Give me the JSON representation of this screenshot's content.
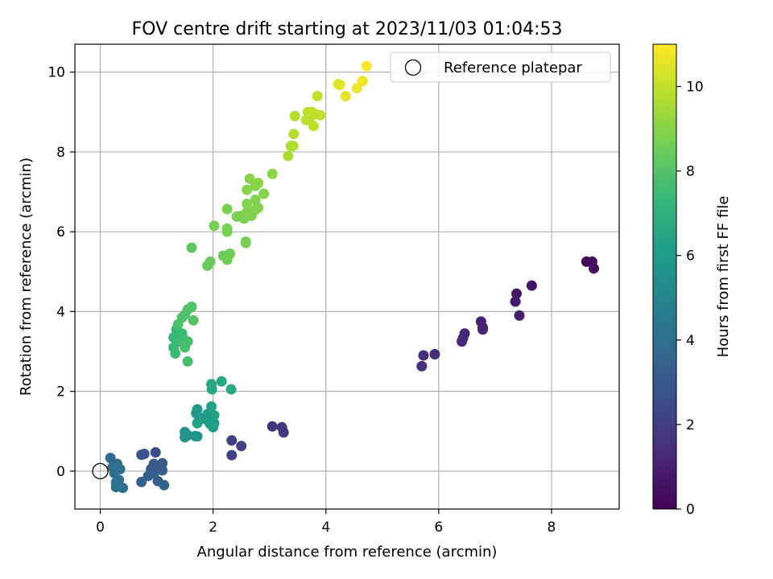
{
  "chart_data": {
    "type": "scatter",
    "title": "FOV centre drift starting at 2023/11/03 01:04:53",
    "xlabel": "Angular distance from reference (arcmin)",
    "ylabel": "Rotation from reference (arcmin)",
    "xlim": [
      -0.45,
      9.2
    ],
    "ylim": [
      -0.95,
      10.7
    ],
    "xticks": [
      0,
      2,
      4,
      6,
      8
    ],
    "yticks": [
      0,
      2,
      4,
      6,
      8,
      10
    ],
    "grid": true,
    "legend": {
      "position": "top-right",
      "entries": [
        "Reference platepar"
      ]
    },
    "colorbar": {
      "label": "Hours from first FF file",
      "colormap": "viridis",
      "range": [
        0,
        11
      ],
      "ticks": [
        0,
        2,
        4,
        6,
        8,
        10
      ]
    },
    "reference_point": {
      "x": 0,
      "y": 0
    },
    "points": [
      {
        "x": 8.62,
        "y": 5.25,
        "h": 0.2
      },
      {
        "x": 8.72,
        "y": 5.25,
        "h": 0.3
      },
      {
        "x": 8.75,
        "y": 5.08,
        "h": 0.4
      },
      {
        "x": 7.65,
        "y": 4.65,
        "h": 0.6
      },
      {
        "x": 7.38,
        "y": 4.45,
        "h": 0.7
      },
      {
        "x": 7.36,
        "y": 4.25,
        "h": 0.8
      },
      {
        "x": 7.43,
        "y": 3.9,
        "h": 0.9
      },
      {
        "x": 6.75,
        "y": 3.75,
        "h": 1.0
      },
      {
        "x": 6.78,
        "y": 3.6,
        "h": 1.05
      },
      {
        "x": 6.78,
        "y": 3.55,
        "h": 1.1
      },
      {
        "x": 6.46,
        "y": 3.45,
        "h": 1.2
      },
      {
        "x": 6.43,
        "y": 3.33,
        "h": 1.25
      },
      {
        "x": 6.41,
        "y": 3.25,
        "h": 1.3
      },
      {
        "x": 5.93,
        "y": 2.93,
        "h": 1.4
      },
      {
        "x": 5.73,
        "y": 2.9,
        "h": 1.45
      },
      {
        "x": 5.7,
        "y": 2.63,
        "h": 1.5
      },
      {
        "x": 3.05,
        "y": 1.12,
        "h": 1.7
      },
      {
        "x": 3.22,
        "y": 1.1,
        "h": 1.75
      },
      {
        "x": 3.25,
        "y": 0.97,
        "h": 1.8
      },
      {
        "x": 2.33,
        "y": 0.77,
        "h": 2.0
      },
      {
        "x": 2.5,
        "y": 0.63,
        "h": 2.1
      },
      {
        "x": 2.33,
        "y": 0.4,
        "h": 2.2
      },
      {
        "x": 0.98,
        "y": 0.47,
        "h": 2.7
      },
      {
        "x": 0.78,
        "y": 0.43,
        "h": 2.8
      },
      {
        "x": 0.73,
        "y": 0.41,
        "h": 2.85
      },
      {
        "x": 1.1,
        "y": 0.2,
        "h": 3.0
      },
      {
        "x": 0.95,
        "y": 0.18,
        "h": 3.05
      },
      {
        "x": 1.05,
        "y": 0.1,
        "h": 3.1
      },
      {
        "x": 0.9,
        "y": 0.05,
        "h": 3.15
      },
      {
        "x": 1.1,
        "y": 0.02,
        "h": 3.2
      },
      {
        "x": 0.95,
        "y": -0.05,
        "h": 3.25
      },
      {
        "x": 0.85,
        "y": -0.12,
        "h": 3.3
      },
      {
        "x": 1.02,
        "y": -0.25,
        "h": 3.35
      },
      {
        "x": 0.73,
        "y": -0.27,
        "h": 3.4
      },
      {
        "x": 1.13,
        "y": -0.35,
        "h": 3.45
      },
      {
        "x": 0.18,
        "y": 0.33,
        "h": 3.8
      },
      {
        "x": 0.3,
        "y": 0.18,
        "h": 3.9
      },
      {
        "x": 0.22,
        "y": 0.1,
        "h": 3.95
      },
      {
        "x": 0.35,
        "y": 0.05,
        "h": 4.0
      },
      {
        "x": 0.25,
        "y": -0.05,
        "h": 4.05
      },
      {
        "x": 0.33,
        "y": -0.22,
        "h": 4.1
      },
      {
        "x": 0.28,
        "y": -0.28,
        "h": 4.15
      },
      {
        "x": 0.28,
        "y": -0.4,
        "h": 4.2
      },
      {
        "x": 0.4,
        "y": -0.42,
        "h": 4.25
      },
      {
        "x": 1.55,
        "y": 0.9,
        "h": 5.5
      },
      {
        "x": 1.5,
        "y": 0.85,
        "h": 5.55
      },
      {
        "x": 1.68,
        "y": 0.88,
        "h": 5.6
      },
      {
        "x": 1.5,
        "y": 0.98,
        "h": 5.65
      },
      {
        "x": 1.72,
        "y": 0.87,
        "h": 5.7
      },
      {
        "x": 1.72,
        "y": 1.55,
        "h": 5.8
      },
      {
        "x": 1.7,
        "y": 1.45,
        "h": 5.85
      },
      {
        "x": 1.75,
        "y": 1.35,
        "h": 5.9
      },
      {
        "x": 1.9,
        "y": 1.43,
        "h": 5.95
      },
      {
        "x": 1.83,
        "y": 1.32,
        "h": 6.0
      },
      {
        "x": 1.92,
        "y": 1.25,
        "h": 6.05
      },
      {
        "x": 1.95,
        "y": 1.18,
        "h": 6.1
      },
      {
        "x": 2.02,
        "y": 1.2,
        "h": 6.15
      },
      {
        "x": 2.0,
        "y": 1.1,
        "h": 6.2
      },
      {
        "x": 2.02,
        "y": 1.4,
        "h": 6.25
      },
      {
        "x": 1.97,
        "y": 1.62,
        "h": 6.3
      },
      {
        "x": 1.72,
        "y": 1.2,
        "h": 6.35
      },
      {
        "x": 1.97,
        "y": 2.18,
        "h": 6.5
      },
      {
        "x": 2.15,
        "y": 2.25,
        "h": 6.55
      },
      {
        "x": 2.32,
        "y": 2.05,
        "h": 6.6
      },
      {
        "x": 1.98,
        "y": 2.05,
        "h": 6.65
      },
      {
        "x": 1.3,
        "y": 3.35,
        "h": 7.3
      },
      {
        "x": 1.35,
        "y": 3.55,
        "h": 7.35
      },
      {
        "x": 1.45,
        "y": 3.45,
        "h": 7.4
      },
      {
        "x": 1.3,
        "y": 3.1,
        "h": 7.45
      },
      {
        "x": 1.33,
        "y": 2.95,
        "h": 7.5
      },
      {
        "x": 1.48,
        "y": 3.3,
        "h": 7.55
      },
      {
        "x": 1.42,
        "y": 3.25,
        "h": 7.6
      },
      {
        "x": 1.55,
        "y": 3.25,
        "h": 7.65
      },
      {
        "x": 1.5,
        "y": 3.1,
        "h": 7.7
      },
      {
        "x": 1.55,
        "y": 2.75,
        "h": 7.75
      },
      {
        "x": 1.38,
        "y": 3.68,
        "h": 7.8
      },
      {
        "x": 1.45,
        "y": 3.85,
        "h": 7.85
      },
      {
        "x": 1.5,
        "y": 3.92,
        "h": 7.9
      },
      {
        "x": 1.55,
        "y": 4.05,
        "h": 7.95
      },
      {
        "x": 1.62,
        "y": 4.12,
        "h": 8.0
      },
      {
        "x": 1.65,
        "y": 3.78,
        "h": 8.05
      },
      {
        "x": 1.62,
        "y": 5.6,
        "h": 8.3
      },
      {
        "x": 1.9,
        "y": 5.15,
        "h": 8.4
      },
      {
        "x": 1.95,
        "y": 5.25,
        "h": 8.45
      },
      {
        "x": 2.18,
        "y": 5.4,
        "h": 8.5
      },
      {
        "x": 2.3,
        "y": 5.45,
        "h": 8.55
      },
      {
        "x": 2.25,
        "y": 5.3,
        "h": 8.6
      },
      {
        "x": 2.58,
        "y": 5.75,
        "h": 8.65
      },
      {
        "x": 2.58,
        "y": 5.72,
        "h": 8.68
      },
      {
        "x": 2.02,
        "y": 6.15,
        "h": 8.7
      },
      {
        "x": 2.25,
        "y": 6.08,
        "h": 8.72
      },
      {
        "x": 2.25,
        "y": 6.0,
        "h": 8.74
      },
      {
        "x": 2.25,
        "y": 6.57,
        "h": 8.76
      },
      {
        "x": 2.42,
        "y": 6.38,
        "h": 8.78
      },
      {
        "x": 2.5,
        "y": 6.4,
        "h": 8.8
      },
      {
        "x": 2.55,
        "y": 6.33,
        "h": 8.82
      },
      {
        "x": 2.6,
        "y": 6.5,
        "h": 8.84
      },
      {
        "x": 2.68,
        "y": 6.4,
        "h": 8.86
      },
      {
        "x": 2.75,
        "y": 6.55,
        "h": 8.88
      },
      {
        "x": 2.6,
        "y": 6.7,
        "h": 8.9
      },
      {
        "x": 2.8,
        "y": 6.6,
        "h": 8.92
      },
      {
        "x": 2.75,
        "y": 6.8,
        "h": 8.94
      },
      {
        "x": 2.9,
        "y": 6.95,
        "h": 8.96
      },
      {
        "x": 2.6,
        "y": 7.05,
        "h": 8.98
      },
      {
        "x": 2.75,
        "y": 7.15,
        "h": 9.0
      },
      {
        "x": 2.65,
        "y": 7.33,
        "h": 9.02
      },
      {
        "x": 2.8,
        "y": 7.22,
        "h": 9.04
      },
      {
        "x": 3.05,
        "y": 7.45,
        "h": 9.1
      },
      {
        "x": 3.33,
        "y": 7.9,
        "h": 9.6
      },
      {
        "x": 3.38,
        "y": 8.15,
        "h": 9.65
      },
      {
        "x": 3.42,
        "y": 8.15,
        "h": 9.7
      },
      {
        "x": 3.43,
        "y": 8.45,
        "h": 9.75
      },
      {
        "x": 3.45,
        "y": 8.9,
        "h": 9.8
      },
      {
        "x": 3.65,
        "y": 8.8,
        "h": 9.85
      },
      {
        "x": 3.72,
        "y": 8.85,
        "h": 9.9
      },
      {
        "x": 3.78,
        "y": 8.65,
        "h": 9.92
      },
      {
        "x": 3.68,
        "y": 9.0,
        "h": 9.95
      },
      {
        "x": 3.75,
        "y": 9.0,
        "h": 9.97
      },
      {
        "x": 3.82,
        "y": 8.95,
        "h": 10.0
      },
      {
        "x": 3.9,
        "y": 8.92,
        "h": 10.02
      },
      {
        "x": 3.85,
        "y": 9.4,
        "h": 10.05
      },
      {
        "x": 4.22,
        "y": 9.7,
        "h": 10.5
      },
      {
        "x": 4.25,
        "y": 9.68,
        "h": 10.55
      },
      {
        "x": 4.35,
        "y": 9.4,
        "h": 10.6
      },
      {
        "x": 4.55,
        "y": 9.6,
        "h": 10.7
      },
      {
        "x": 4.65,
        "y": 9.78,
        "h": 10.8
      },
      {
        "x": 4.72,
        "y": 10.15,
        "h": 10.95
      }
    ]
  }
}
